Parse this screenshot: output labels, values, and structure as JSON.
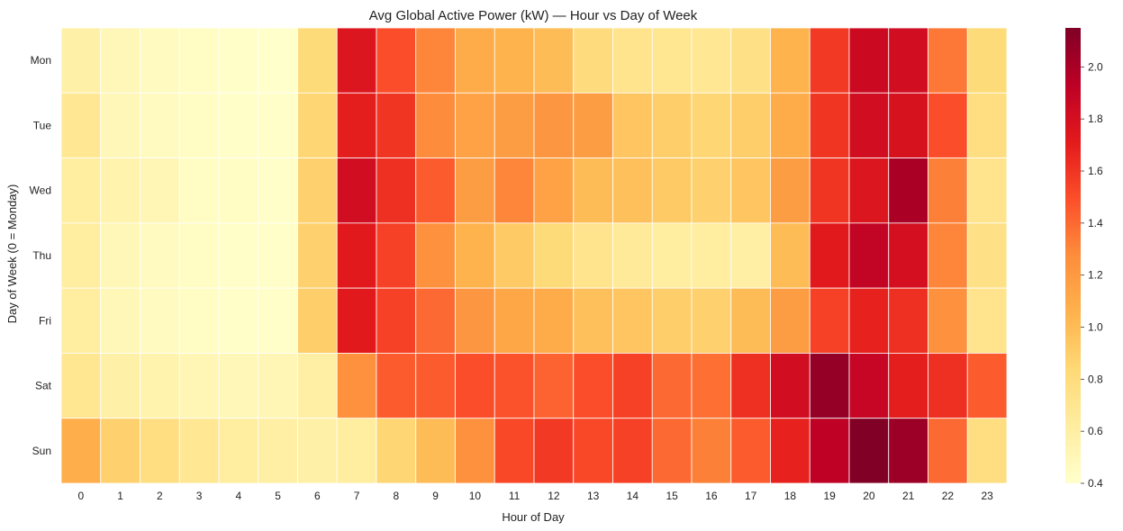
{
  "chart_data": {
    "type": "heatmap",
    "title": "Avg Global Active Power (kW) — Hour vs Day of Week",
    "xlabel": "Hour of Day",
    "ylabel": "Day of Week (0 = Monday)",
    "x": [
      "0",
      "1",
      "2",
      "3",
      "4",
      "5",
      "6",
      "7",
      "8",
      "9",
      "10",
      "11",
      "12",
      "13",
      "14",
      "15",
      "16",
      "17",
      "18",
      "19",
      "20",
      "21",
      "22",
      "23"
    ],
    "y": [
      "Mon",
      "Tue",
      "Wed",
      "Thu",
      "Fri",
      "Sat",
      "Sun"
    ],
    "values": [
      [
        0.58,
        0.5,
        0.46,
        0.44,
        0.42,
        0.4,
        0.82,
        1.75,
        1.5,
        1.3,
        1.1,
        1.05,
        1.0,
        0.8,
        0.72,
        0.7,
        0.68,
        0.75,
        1.05,
        1.58,
        1.85,
        1.82,
        1.35,
        0.82
      ],
      [
        0.68,
        0.5,
        0.46,
        0.44,
        0.42,
        0.42,
        0.85,
        1.7,
        1.6,
        1.28,
        1.15,
        1.18,
        1.22,
        1.18,
        0.95,
        0.9,
        0.85,
        0.9,
        1.1,
        1.6,
        1.82,
        1.78,
        1.5,
        0.78
      ],
      [
        0.62,
        0.55,
        0.52,
        0.44,
        0.44,
        0.42,
        0.88,
        1.82,
        1.62,
        1.45,
        1.18,
        1.3,
        1.15,
        1.0,
        0.98,
        0.92,
        0.88,
        0.95,
        1.18,
        1.6,
        1.75,
        2.0,
        1.32,
        0.72
      ],
      [
        0.62,
        0.5,
        0.46,
        0.44,
        0.42,
        0.42,
        0.88,
        1.72,
        1.55,
        1.25,
        1.05,
        0.92,
        0.82,
        0.72,
        0.65,
        0.62,
        0.62,
        0.6,
        1.0,
        1.72,
        1.9,
        1.8,
        1.3,
        0.75
      ],
      [
        0.62,
        0.5,
        0.46,
        0.44,
        0.42,
        0.42,
        0.9,
        1.72,
        1.55,
        1.4,
        1.22,
        1.12,
        1.1,
        0.98,
        0.95,
        0.9,
        0.88,
        1.0,
        1.18,
        1.55,
        1.68,
        1.62,
        1.25,
        0.72
      ],
      [
        0.7,
        0.58,
        0.55,
        0.52,
        0.5,
        0.52,
        0.6,
        1.25,
        1.45,
        1.45,
        1.5,
        1.48,
        1.42,
        1.5,
        1.55,
        1.4,
        1.38,
        1.62,
        1.82,
        2.08,
        1.88,
        1.7,
        1.62,
        1.45
      ],
      [
        1.08,
        0.88,
        0.78,
        0.68,
        0.62,
        0.6,
        0.58,
        0.62,
        0.85,
        1.0,
        1.25,
        1.52,
        1.58,
        1.52,
        1.55,
        1.4,
        1.32,
        1.45,
        1.68,
        1.92,
        2.15,
        2.05,
        1.4,
        0.78
      ]
    ],
    "colorbar": {
      "min": 0.4,
      "max": 2.15,
      "ticks": [
        "0.4",
        "0.6",
        "0.8",
        "1.0",
        "1.2",
        "1.4",
        "1.6",
        "1.8",
        "2.0"
      ],
      "colormap": "YlOrRd"
    },
    "grid": false,
    "cell_border_color": "#ffffff"
  }
}
